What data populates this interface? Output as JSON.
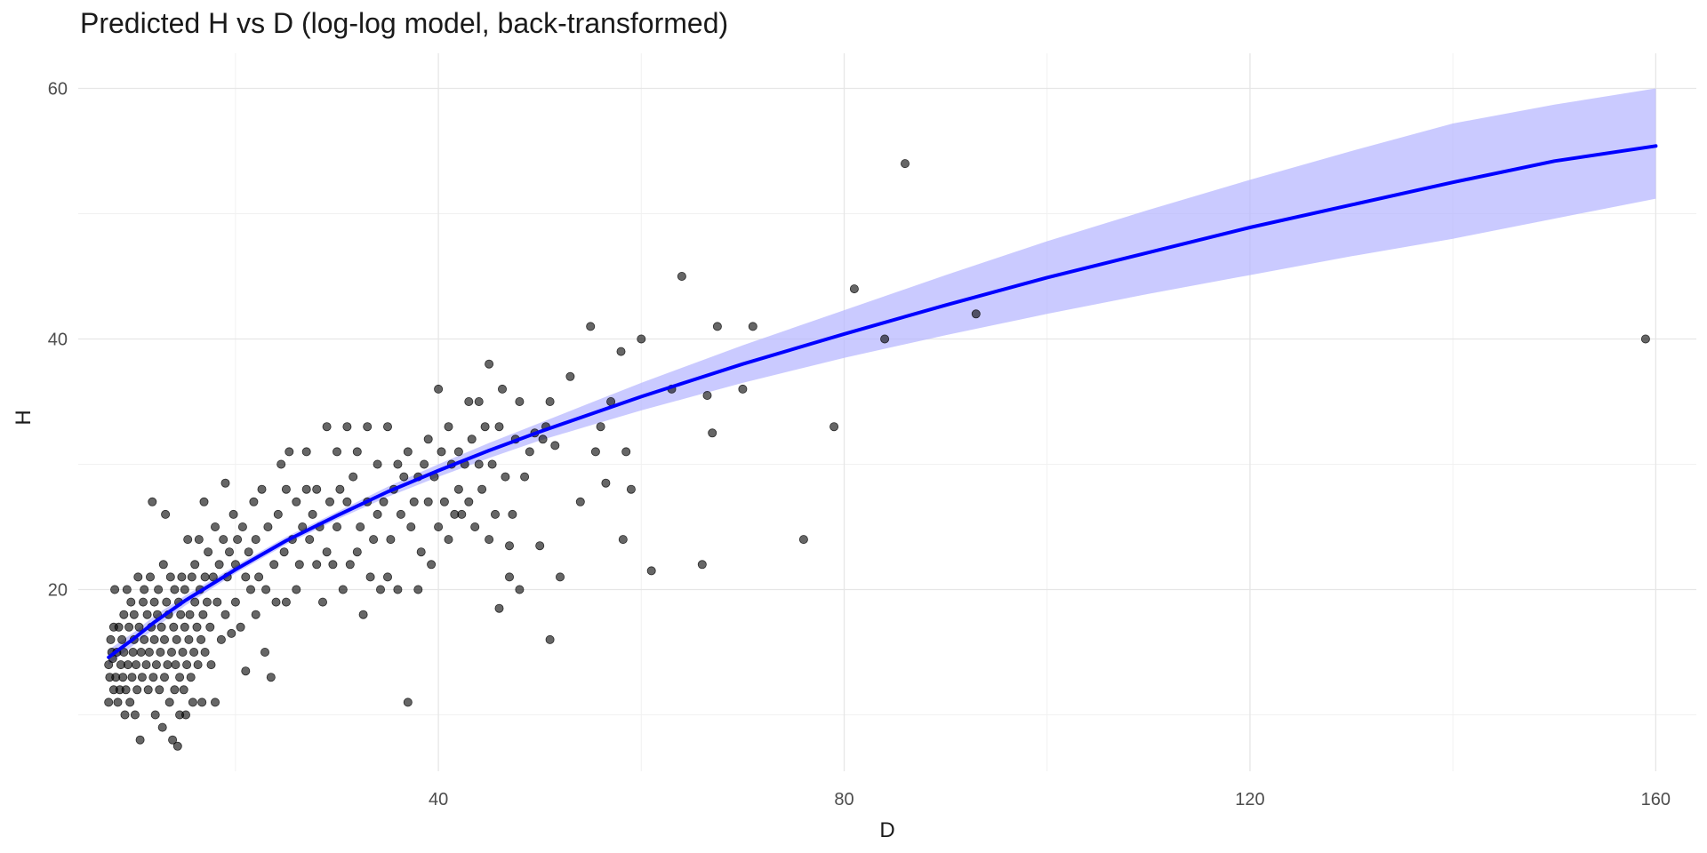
{
  "chart_data": {
    "type": "scatter",
    "title": "Predicted H vs D (log-log model, back-transformed)",
    "xlabel": "D",
    "ylabel": "H",
    "xlim": [
      4.5,
      164
    ],
    "ylim": [
      5.5,
      62.8
    ],
    "x_ticks": [
      40,
      80,
      120,
      160
    ],
    "x_minor_ticks": [
      20,
      60,
      100,
      140
    ],
    "y_ticks": [
      20,
      40,
      60
    ],
    "y_minor_ticks": [
      10,
      30,
      50
    ],
    "grid": true,
    "legend": "none",
    "colors": {
      "points": "#000000",
      "fit_line": "#0000ff",
      "confidence_band": "#b3b3ff"
    },
    "series": [
      {
        "kind": "points",
        "points": [
          [
            7.5,
            11
          ],
          [
            7.5,
            14
          ],
          [
            7.6,
            13
          ],
          [
            7.7,
            16
          ],
          [
            7.8,
            15
          ],
          [
            7.9,
            14.5
          ],
          [
            8,
            12
          ],
          [
            8,
            17
          ],
          [
            8.1,
            20
          ],
          [
            8.2,
            13
          ],
          [
            8.3,
            15
          ],
          [
            8.4,
            11
          ],
          [
            8.5,
            17
          ],
          [
            8.6,
            12
          ],
          [
            8.7,
            14
          ],
          [
            8.8,
            16
          ],
          [
            8.9,
            13
          ],
          [
            9,
            15
          ],
          [
            9,
            18
          ],
          [
            9.1,
            10
          ],
          [
            9.2,
            12
          ],
          [
            9.3,
            20
          ],
          [
            9.4,
            14
          ],
          [
            9.5,
            17
          ],
          [
            9.6,
            11
          ],
          [
            9.7,
            19
          ],
          [
            9.8,
            13
          ],
          [
            9.9,
            15
          ],
          [
            10,
            16
          ],
          [
            10,
            18
          ],
          [
            10.1,
            10
          ],
          [
            10.2,
            14
          ],
          [
            10.3,
            12
          ],
          [
            10.4,
            21
          ],
          [
            10.5,
            17
          ],
          [
            10.6,
            8
          ],
          [
            10.7,
            15
          ],
          [
            10.8,
            13
          ],
          [
            10.9,
            19
          ],
          [
            11,
            16
          ],
          [
            11,
            20
          ],
          [
            11.2,
            14
          ],
          [
            11.3,
            18
          ],
          [
            11.4,
            12
          ],
          [
            11.5,
            15
          ],
          [
            11.6,
            21
          ],
          [
            11.7,
            17
          ],
          [
            11.8,
            27
          ],
          [
            11.9,
            13
          ],
          [
            12,
            16
          ],
          [
            12,
            19
          ],
          [
            12.1,
            10
          ],
          [
            12.2,
            14
          ],
          [
            12.3,
            18
          ],
          [
            12.4,
            20
          ],
          [
            12.5,
            12
          ],
          [
            12.6,
            15
          ],
          [
            12.7,
            17
          ],
          [
            12.8,
            9
          ],
          [
            12.9,
            22
          ],
          [
            13,
            13
          ],
          [
            13,
            16
          ],
          [
            13.1,
            26
          ],
          [
            13.2,
            19
          ],
          [
            13.3,
            14
          ],
          [
            13.4,
            18
          ],
          [
            13.5,
            11
          ],
          [
            13.6,
            21
          ],
          [
            13.7,
            15
          ],
          [
            13.8,
            8
          ],
          [
            13.9,
            17
          ],
          [
            14,
            12
          ],
          [
            14,
            20
          ],
          [
            14.1,
            14
          ],
          [
            14.2,
            16
          ],
          [
            14.3,
            7.5
          ],
          [
            14.4,
            19
          ],
          [
            14.5,
            10
          ],
          [
            14.5,
            13
          ],
          [
            14.6,
            18
          ],
          [
            14.7,
            21
          ],
          [
            14.8,
            15
          ],
          [
            14.9,
            12
          ],
          [
            15,
            17
          ],
          [
            15,
            20
          ],
          [
            15.1,
            10
          ],
          [
            15.2,
            14
          ],
          [
            15.3,
            24
          ],
          [
            15.4,
            16
          ],
          [
            15.5,
            18
          ],
          [
            15.6,
            13
          ],
          [
            15.7,
            21
          ],
          [
            15.8,
            11
          ],
          [
            15.9,
            15
          ],
          [
            16,
            19
          ],
          [
            16,
            22
          ],
          [
            16.2,
            17
          ],
          [
            16.3,
            14
          ],
          [
            16.4,
            24
          ],
          [
            16.5,
            20
          ],
          [
            16.6,
            16
          ],
          [
            16.7,
            11
          ],
          [
            16.8,
            18
          ],
          [
            16.9,
            27
          ],
          [
            17,
            21
          ],
          [
            17,
            15
          ],
          [
            17.2,
            19
          ],
          [
            17.3,
            23
          ],
          [
            17.5,
            17
          ],
          [
            17.6,
            14
          ],
          [
            17.8,
            21
          ],
          [
            18,
            25
          ],
          [
            18,
            11
          ],
          [
            18.2,
            19
          ],
          [
            18.4,
            22
          ],
          [
            18.6,
            16
          ],
          [
            18.8,
            24
          ],
          [
            19,
            18
          ],
          [
            19,
            28.5
          ],
          [
            19.2,
            21
          ],
          [
            19.4,
            23
          ],
          [
            19.6,
            16.5
          ],
          [
            19.8,
            26
          ],
          [
            20,
            22
          ],
          [
            20,
            19
          ],
          [
            20.2,
            24
          ],
          [
            20.5,
            17
          ],
          [
            20.7,
            25
          ],
          [
            21,
            21
          ],
          [
            21,
            13.5
          ],
          [
            21.3,
            23
          ],
          [
            21.5,
            20
          ],
          [
            21.8,
            27
          ],
          [
            22,
            24
          ],
          [
            22,
            18
          ],
          [
            22.3,
            21
          ],
          [
            22.6,
            28
          ],
          [
            22.9,
            15
          ],
          [
            23,
            20
          ],
          [
            23.2,
            25
          ],
          [
            23.5,
            13
          ],
          [
            23.8,
            22
          ],
          [
            24,
            19
          ],
          [
            24.2,
            26
          ],
          [
            24.5,
            30
          ],
          [
            24.8,
            23
          ],
          [
            25,
            28
          ],
          [
            25,
            19
          ],
          [
            25.3,
            31
          ],
          [
            25.6,
            24
          ],
          [
            26,
            27
          ],
          [
            26,
            20
          ],
          [
            26.3,
            22
          ],
          [
            26.6,
            25
          ],
          [
            27,
            28
          ],
          [
            27,
            31
          ],
          [
            27.3,
            24
          ],
          [
            27.6,
            26
          ],
          [
            28,
            22
          ],
          [
            28,
            28
          ],
          [
            28.3,
            25
          ],
          [
            28.6,
            19
          ],
          [
            29,
            23
          ],
          [
            29,
            33
          ],
          [
            29.3,
            27
          ],
          [
            29.6,
            22
          ],
          [
            30,
            31
          ],
          [
            30,
            25
          ],
          [
            30.3,
            28
          ],
          [
            30.6,
            20
          ],
          [
            31,
            27
          ],
          [
            31,
            33
          ],
          [
            31.3,
            22
          ],
          [
            31.6,
            29
          ],
          [
            32,
            31
          ],
          [
            32,
            23
          ],
          [
            32.3,
            25
          ],
          [
            32.6,
            18
          ],
          [
            33,
            27
          ],
          [
            33,
            33
          ],
          [
            33.3,
            21
          ],
          [
            33.6,
            24
          ],
          [
            34,
            30
          ],
          [
            34,
            26
          ],
          [
            34.3,
            20
          ],
          [
            34.6,
            27
          ],
          [
            35,
            33
          ],
          [
            35,
            21
          ],
          [
            35.3,
            24
          ],
          [
            35.6,
            28
          ],
          [
            36,
            30
          ],
          [
            36,
            20
          ],
          [
            36.3,
            26
          ],
          [
            36.6,
            29
          ],
          [
            37,
            31
          ],
          [
            37,
            11
          ],
          [
            37.3,
            25
          ],
          [
            37.6,
            27
          ],
          [
            38,
            29
          ],
          [
            38,
            20
          ],
          [
            38.3,
            23
          ],
          [
            38.6,
            30
          ],
          [
            39,
            27
          ],
          [
            39,
            32
          ],
          [
            39.3,
            22
          ],
          [
            39.6,
            29
          ],
          [
            40,
            36
          ],
          [
            40,
            25
          ],
          [
            40.3,
            31
          ],
          [
            40.6,
            27
          ],
          [
            41,
            33
          ],
          [
            41,
            24
          ],
          [
            41.3,
            30
          ],
          [
            41.6,
            26
          ],
          [
            42,
            31
          ],
          [
            42,
            28
          ],
          [
            42.3,
            26
          ],
          [
            42.6,
            30
          ],
          [
            43,
            35
          ],
          [
            43,
            27
          ],
          [
            43.3,
            32
          ],
          [
            43.6,
            25
          ],
          [
            44,
            30
          ],
          [
            44,
            35
          ],
          [
            44.3,
            28
          ],
          [
            44.6,
            33
          ],
          [
            45,
            38
          ],
          [
            45,
            24
          ],
          [
            45.3,
            30
          ],
          [
            45.6,
            26
          ],
          [
            46,
            33
          ],
          [
            46,
            18.5
          ],
          [
            46.3,
            36
          ],
          [
            46.6,
            29
          ],
          [
            47,
            23.5
          ],
          [
            47,
            21
          ],
          [
            47.3,
            26
          ],
          [
            47.6,
            32
          ],
          [
            48,
            35
          ],
          [
            48,
            20
          ],
          [
            48.5,
            29
          ],
          [
            49,
            31
          ],
          [
            49.5,
            32.5
          ],
          [
            50,
            23.5
          ],
          [
            50.3,
            32
          ],
          [
            50.6,
            33
          ],
          [
            51,
            35
          ],
          [
            51,
            16
          ],
          [
            51.5,
            31.5
          ],
          [
            52,
            21
          ],
          [
            53,
            37
          ],
          [
            54,
            27
          ],
          [
            55,
            41
          ],
          [
            55.5,
            31
          ],
          [
            56,
            33
          ],
          [
            56.5,
            28.5
          ],
          [
            57,
            35
          ],
          [
            58,
            39
          ],
          [
            58.2,
            24
          ],
          [
            58.5,
            31
          ],
          [
            59,
            28
          ],
          [
            60,
            40
          ],
          [
            61,
            21.5
          ],
          [
            63,
            36
          ],
          [
            64,
            45
          ],
          [
            66,
            22
          ],
          [
            66.5,
            35.5
          ],
          [
            67,
            32.5
          ],
          [
            67.5,
            41
          ],
          [
            70,
            36
          ],
          [
            71,
            41
          ],
          [
            76,
            24
          ],
          [
            79,
            33
          ],
          [
            81,
            44
          ],
          [
            84,
            40
          ],
          [
            86,
            54
          ],
          [
            93,
            42
          ],
          [
            159,
            40
          ]
        ]
      },
      {
        "kind": "fit",
        "x": [
          7.5,
          10,
          12,
          15,
          20,
          25,
          30,
          35,
          40,
          45,
          50,
          55,
          60,
          65,
          70,
          80,
          90,
          100,
          110,
          120,
          130,
          140,
          150,
          160
        ],
        "fit": [
          14.6,
          16.1,
          17.4,
          19.1,
          21.6,
          23.9,
          25.9,
          27.8,
          29.5,
          31.1,
          32.6,
          34.0,
          35.4,
          36.7,
          38.0,
          40.4,
          42.7,
          44.9,
          46.9,
          48.9,
          50.7,
          52.5,
          54.2,
          55.4
        ],
        "lower": [
          14.0,
          15.6,
          16.9,
          18.7,
          21.3,
          23.6,
          25.6,
          27.4,
          29.0,
          30.5,
          31.9,
          33.1,
          34.3,
          35.4,
          36.5,
          38.5,
          40.3,
          42.0,
          43.6,
          45.1,
          46.6,
          48.0,
          49.6,
          51.2
        ],
        "upper": [
          15.2,
          16.6,
          17.9,
          19.5,
          21.9,
          24.2,
          26.2,
          28.2,
          30.0,
          31.7,
          33.3,
          34.9,
          36.5,
          38.0,
          39.5,
          42.3,
          45.1,
          47.8,
          50.3,
          52.7,
          55.0,
          57.2,
          58.7,
          60.0
        ]
      }
    ]
  }
}
